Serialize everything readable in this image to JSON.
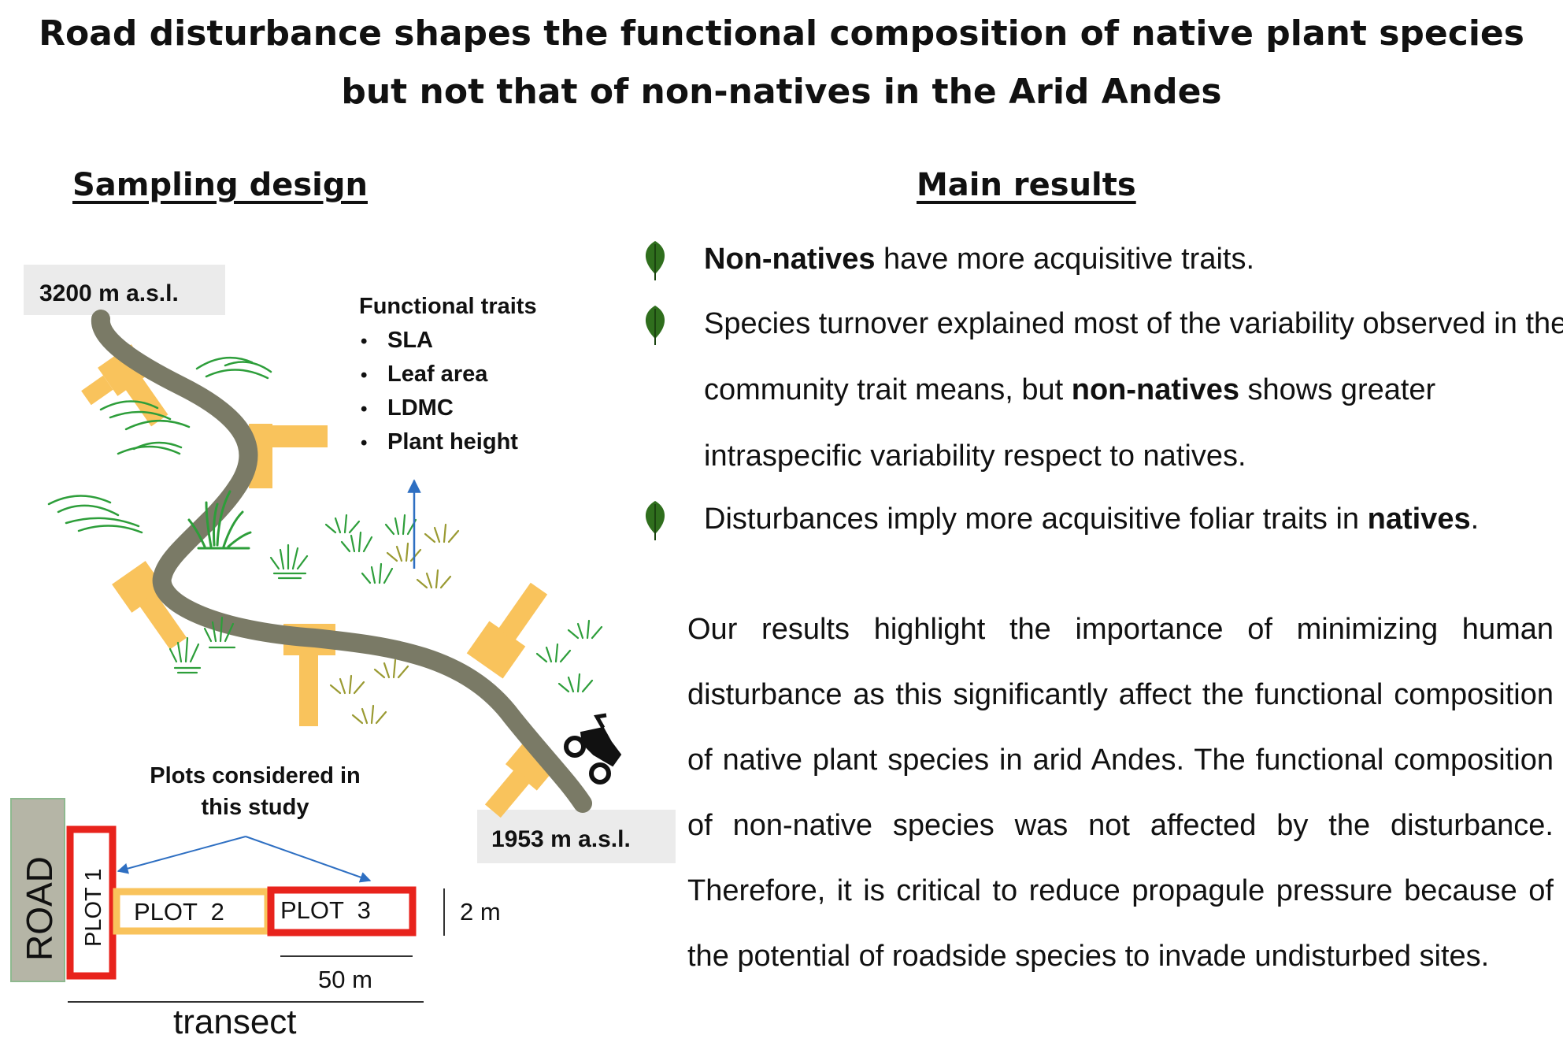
{
  "title": {
    "line1": "Road disturbance shapes the functional composition of native plant species",
    "line2": "but not that of non-natives in the Arid Andes"
  },
  "sampling_design": {
    "heading": "Sampling design",
    "elevation_top": "3200 m a.s.l.",
    "elevation_bottom": "1953 m a.s.l.",
    "traits_heading": "Functional traits",
    "traits": [
      "SLA",
      "Leaf area",
      "LDMC",
      "Plant height"
    ],
    "plots_label_line1": "Plots considered in",
    "plots_label_line2": "this study",
    "road_label": "ROAD",
    "plot1": "PLOT 1",
    "plot2": "PLOT  2",
    "plot3": "PLOT  3",
    "width_label": "2 m",
    "length_label": "50 m",
    "transect_label": "transect",
    "road_color": "#7a7a66",
    "plot_color": "#f9c35c",
    "highlight_color": "#e8231c",
    "grass_green": "#2d9e3a",
    "grass_olive": "#9a9a32",
    "arrow_color": "#2e6fc2",
    "vehicle_icon": "atv-icon"
  },
  "main_results": {
    "heading": "Main results",
    "bullet_icon": "leaf-icon",
    "leaf_color": "#2f6e1d",
    "bullets": [
      {
        "bold1": "Non-natives",
        "text1": " have more acquisitive traits."
      },
      {
        "text1": "Species turnover explained most of the variability observed in the community trait means, but ",
        "bold1": "non-natives",
        "text2": " shows greater intraspecific variability respect to natives."
      },
      {
        "text1": "Disturbances imply more acquisitive foliar traits in ",
        "bold1": "natives",
        "text2": "."
      }
    ],
    "conclusion": "Our results highlight the importance of minimizing human disturbance as this significantly affect the functional composition of native plant species in arid Andes. The functional composition of non-native species was not affected by the disturbance. Therefore, it is critical to reduce propagule pressure because of the potential of roadside species to invade undisturbed sites."
  }
}
